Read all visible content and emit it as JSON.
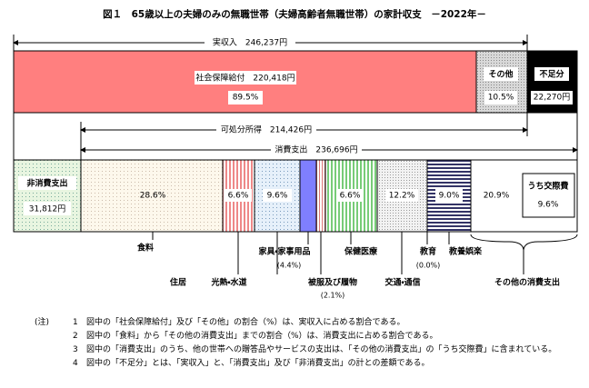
{
  "title": "図１　65歳以上の夫婦のみの無職世帯（夫婦高齢者無職世帯）の家計収支　－2022年－",
  "income": {
    "arrow": "実収入　246,237円",
    "segments": [
      {
        "label": "社会保障給付　220,418円",
        "share": "89.5%"
      },
      {
        "label": "その他",
        "share": "10.5%"
      },
      {
        "label": "不足分",
        "share": "22,270円"
      }
    ]
  },
  "disposable": "可処分所得　214,426円",
  "consumption": "消費支出　236,696円",
  "spending": {
    "non_consumption": {
      "label": "非消費支出",
      "amount": "31,812円"
    },
    "shares": [
      "28.6%",
      "6.6%",
      "9.6%",
      "6.6%",
      "12.2%",
      "9.0%",
      "20.9%"
    ],
    "social": {
      "label": "うち交際費",
      "share": "9.6%"
    },
    "labels": [
      "食料",
      "住居",
      "光熱・水道",
      "家具・家事用品",
      "(4.4%)",
      "被服及び履物",
      "(2.1%)",
      "保健医療",
      "交通・通信",
      "教育",
      "(0.0%)",
      "教養娯楽",
      "その他の消費支出"
    ]
  },
  "notes": {
    "marker": "(注)",
    "items": [
      {
        "num": "1",
        "text": "図中の「社会保障給付」及び「その他」の割合（%）は、実収入に占める割合である。"
      },
      {
        "num": "2",
        "text": "図中の「食料」から「その他の消費支出」までの割合（%）は、消費支出に占める割合である。"
      },
      {
        "num": "3",
        "text": "図中の「消費支出」のうち、他の世帯への贈答品やサービスの支出は、「その他の消費支出」の「うち交際費」に含まれている。"
      },
      {
        "num": "4",
        "text": "図中の「不足分」とは、「実収入」と、「消費支出」及び「非消費支出」の計との差額である。"
      }
    ]
  }
}
